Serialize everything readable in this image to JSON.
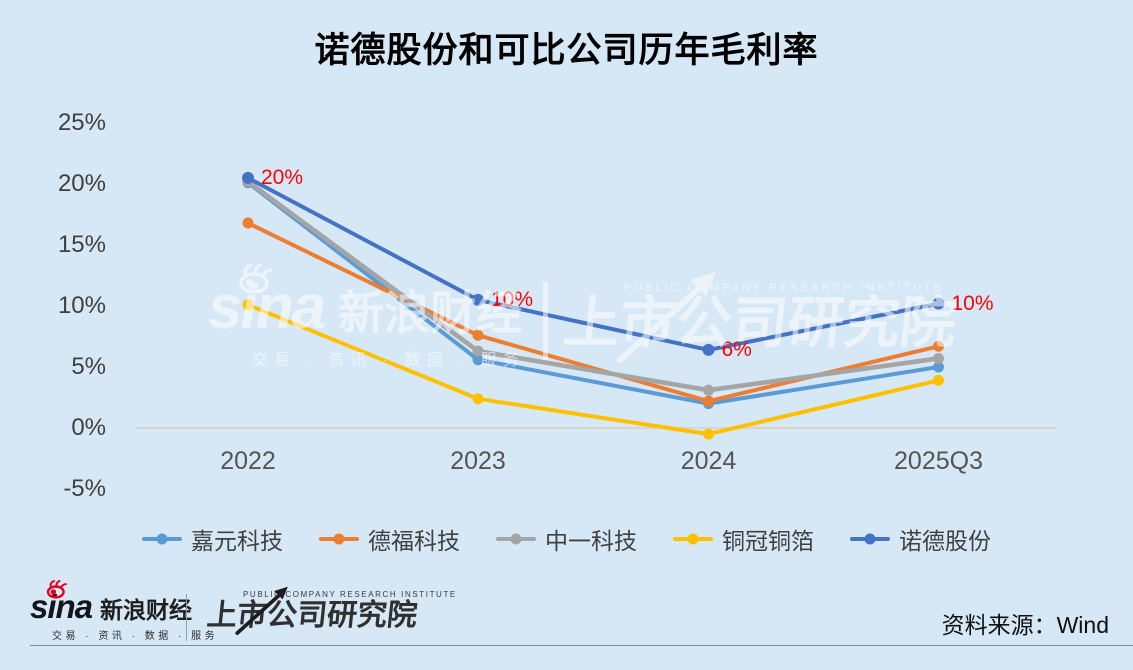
{
  "title": "诺德股份和可比公司历年毛利率",
  "chart_data": {
    "type": "line",
    "categories": [
      "2022",
      "2023",
      "2024",
      "2025Q3"
    ],
    "series": [
      {
        "name": "嘉元科技",
        "color": "#5B9BD5",
        "values": [
          20.1,
          5.6,
          2.0,
          5.0
        ]
      },
      {
        "name": "德福科技",
        "color": "#ED7D31",
        "values": [
          16.8,
          7.6,
          2.2,
          6.7
        ]
      },
      {
        "name": "中一科技",
        "color": "#A5A5A5",
        "values": [
          20.2,
          6.3,
          3.1,
          5.7
        ]
      },
      {
        "name": "铜冠铜箔",
        "color": "#FFC000",
        "values": [
          10.1,
          2.4,
          -0.5,
          3.9
        ]
      },
      {
        "name": "诺德股份",
        "color": "#4472C4",
        "values": [
          20.5,
          10.5,
          6.4,
          10.2
        ],
        "point_labels": [
          "20%",
          "10%",
          "6%",
          "10%"
        ],
        "label_color": "#FF0000"
      }
    ],
    "title": "诺德股份和可比公司历年毛利率",
    "xlabel": "",
    "ylabel": "",
    "ylim": [
      -5,
      25
    ],
    "y_ticks": [
      {
        "label": "25%",
        "value": 25
      },
      {
        "label": "20%",
        "value": 20
      },
      {
        "label": "15%",
        "value": 15
      },
      {
        "label": "10%",
        "value": 10
      },
      {
        "label": "5%",
        "value": 5
      },
      {
        "label": "0%",
        "value": 0
      },
      {
        "label": "-5%",
        "value": -5
      }
    ],
    "grid": false,
    "legend_position": "bottom"
  },
  "colors": {
    "background": "#D6E8F5",
    "axis_line": "#D8CEC2",
    "data_label": "#FF0000"
  },
  "watermark": {
    "sina": "sina",
    "brand": "新浪财经",
    "tagline": "交易 · 资讯 · 数据 · 服务",
    "institute_en": "PUBLIC COMPANY RESEARCH INSTITUTE",
    "institute": "上市公司研究院"
  },
  "footer": {
    "sina": "sina",
    "brand": "新浪财经",
    "tagline": "交易 · 资讯 · 数据 · 服务",
    "institute_en": "PUBLIC COMPANY RESEARCH INSTITUTE",
    "institute": "上市公司研究院",
    "source": "资料来源：Wind"
  }
}
